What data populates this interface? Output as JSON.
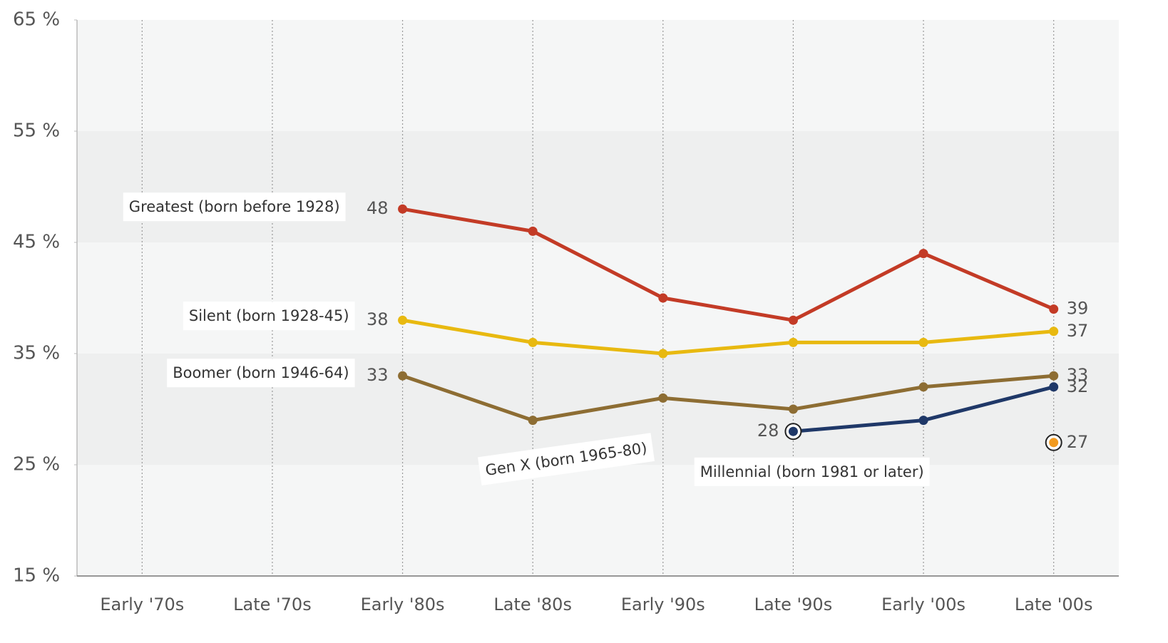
{
  "chart_data": {
    "type": "line",
    "categories": [
      "Early '70s",
      "Late '70s",
      "Early '80s",
      "Late '80s",
      "Early '90s",
      "Late '90s",
      "Early '00s",
      "Late '00s"
    ],
    "series": [
      {
        "name": "Greatest (born before 1928)",
        "color": "#c33b26",
        "values": [
          null,
          null,
          48,
          46,
          40,
          38,
          44,
          39
        ]
      },
      {
        "name": "Silent (born 1928-45)",
        "color": "#e8b910",
        "values": [
          null,
          null,
          38,
          36,
          35,
          36,
          36,
          37
        ]
      },
      {
        "name": "Boomer (born 1946-64)",
        "color": "#8d6d33",
        "values": [
          null,
          null,
          33,
          29,
          31,
          30,
          32,
          33
        ]
      },
      {
        "name": "Gen X (born 1965-80)",
        "color": "#1f3868",
        "values": [
          null,
          null,
          null,
          null,
          null,
          28,
          29,
          32
        ]
      },
      {
        "name": "Millennial (born 1981 or later)",
        "color": "#f29a1f",
        "values": [
          null,
          null,
          null,
          null,
          null,
          null,
          null,
          27
        ]
      }
    ],
    "ylim": [
      15,
      65
    ],
    "yticks": [
      {
        "value": 15,
        "label": "15 %"
      },
      {
        "value": 25,
        "label": "25 %"
      },
      {
        "value": 35,
        "label": "35 %"
      },
      {
        "value": 45,
        "label": "45 %"
      },
      {
        "value": 55,
        "label": "55 %"
      },
      {
        "value": 65,
        "label": "65 %"
      }
    ]
  }
}
